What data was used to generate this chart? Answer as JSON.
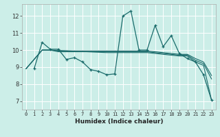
{
  "title": "",
  "xlabel": "Humidex (Indice chaleur)",
  "ylabel": "",
  "background_color": "#cceee8",
  "grid_color": "#ffffff",
  "line_color": "#1a6b6b",
  "xlim": [
    -0.5,
    23.5
  ],
  "ylim": [
    6.5,
    12.7
  ],
  "xticks": [
    0,
    1,
    2,
    3,
    4,
    5,
    6,
    7,
    8,
    9,
    10,
    11,
    12,
    13,
    14,
    15,
    16,
    17,
    18,
    19,
    20,
    21,
    22,
    23
  ],
  "yticks": [
    7,
    8,
    9,
    10,
    11,
    12
  ],
  "series_main": {
    "x": [
      1,
      2,
      3,
      4,
      5,
      6,
      7,
      8,
      9,
      10,
      11,
      12,
      13,
      14,
      15,
      16,
      17,
      18,
      19,
      20,
      21,
      22,
      23
    ],
    "y": [
      8.9,
      10.45,
      10.05,
      10.05,
      9.45,
      9.55,
      9.3,
      8.85,
      8.75,
      8.55,
      8.6,
      12.0,
      12.3,
      10.0,
      10.0,
      11.45,
      10.2,
      10.85,
      9.8,
      9.5,
      9.3,
      8.55,
      7.05
    ]
  },
  "series_flat": [
    {
      "x": [
        0,
        2,
        3,
        4,
        5,
        10,
        11,
        14,
        15,
        19,
        20,
        21,
        22,
        23
      ],
      "y": [
        8.9,
        10.0,
        10.0,
        9.95,
        9.95,
        9.95,
        9.95,
        9.95,
        9.95,
        9.75,
        9.75,
        9.5,
        9.3,
        8.5
      ]
    },
    {
      "x": [
        0,
        2,
        3,
        4,
        5,
        10,
        11,
        14,
        15,
        19,
        20,
        21,
        22,
        23
      ],
      "y": [
        8.9,
        10.0,
        10.0,
        9.9,
        9.9,
        9.9,
        9.9,
        9.9,
        9.9,
        9.7,
        9.7,
        9.4,
        9.2,
        8.3
      ]
    },
    {
      "x": [
        0,
        2,
        3,
        10,
        11,
        14,
        15,
        19,
        20,
        21,
        22,
        23
      ],
      "y": [
        8.9,
        10.0,
        10.0,
        9.85,
        9.85,
        9.85,
        9.85,
        9.65,
        9.65,
        9.3,
        9.1,
        7.05
      ]
    }
  ]
}
